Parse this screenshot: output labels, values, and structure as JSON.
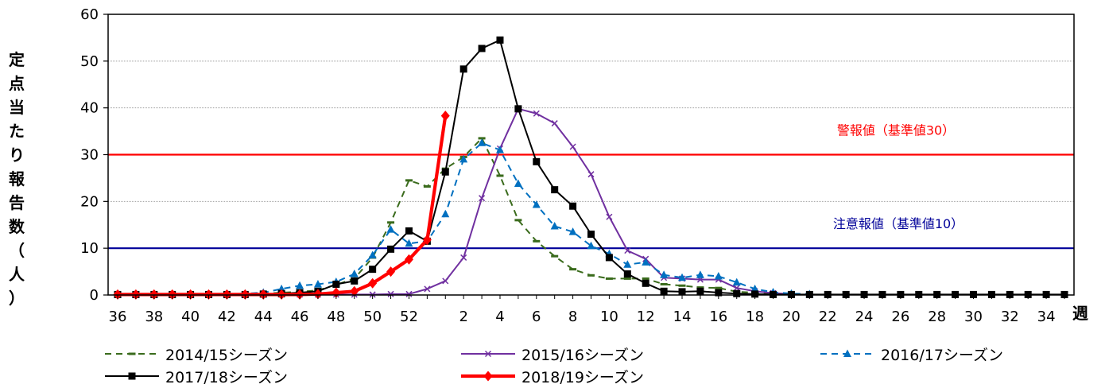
{
  "chart_data": {
    "type": "line",
    "xlabel": "週",
    "ylabel": "定点当たり報告数（人）",
    "ylim": [
      0,
      60
    ],
    "yticks": [
      0,
      10,
      20,
      30,
      40,
      50,
      60
    ],
    "x": [
      "36",
      "37",
      "38",
      "39",
      "40",
      "41",
      "42",
      "43",
      "44",
      "45",
      "46",
      "47",
      "48",
      "49",
      "50",
      "51",
      "52",
      "53",
      "1",
      "2",
      "3",
      "4",
      "5",
      "6",
      "7",
      "8",
      "9",
      "10",
      "11",
      "12",
      "13",
      "14",
      "15",
      "16",
      "17",
      "18",
      "19",
      "20",
      "21",
      "22",
      "23",
      "24",
      "25",
      "26",
      "27",
      "28",
      "29",
      "30",
      "31",
      "32",
      "33",
      "34",
      "35"
    ],
    "xtick_labels": [
      "36",
      "38",
      "40",
      "42",
      "44",
      "46",
      "48",
      "50",
      "52",
      "2",
      "4",
      "6",
      "8",
      "10",
      "12",
      "14",
      "16",
      "18",
      "20",
      "22",
      "24",
      "26",
      "28",
      "30",
      "32",
      "34"
    ],
    "reference_lines": [
      {
        "label": "警報値（基準値30）",
        "value": 30,
        "color": "#ff0000"
      },
      {
        "label": "注意報値（基準値10）",
        "value": 10,
        "color": "#000099"
      }
    ],
    "series": [
      {
        "name": "2014/15シーズン",
        "color": "#3a6b1c",
        "style": "dashed",
        "marker": "dash",
        "values": [
          0.1,
          0.1,
          0.1,
          0.1,
          0.1,
          0.1,
          0.1,
          0.2,
          0.3,
          0.5,
          0.7,
          1.0,
          2.2,
          3.5,
          8.0,
          15.5,
          24.5,
          23.2,
          27.0,
          29.5,
          33.5,
          25.5,
          16.0,
          11.5,
          8.3,
          5.5,
          4.2,
          3.5,
          3.5,
          3.5,
          2.3,
          2.0,
          1.6,
          1.5,
          0.7,
          0.5,
          0.3,
          0.2,
          null,
          null,
          null,
          null,
          null,
          null,
          null,
          null,
          null,
          null,
          null,
          null,
          null,
          null,
          null
        ]
      },
      {
        "name": "2015/16シーズン",
        "color": "#7030a0",
        "style": "solid",
        "marker": "x",
        "values": [
          0.1,
          0.1,
          0.1,
          0.1,
          0.1,
          0.1,
          0.1,
          0.1,
          0.1,
          0.1,
          0.1,
          0.1,
          0.1,
          0.1,
          0.1,
          0.2,
          0.2,
          1.3,
          3.0,
          8.0,
          20.7,
          31.3,
          39.8,
          38.8,
          36.7,
          31.7,
          25.8,
          16.7,
          9.5,
          7.7,
          3.7,
          3.5,
          3.3,
          3.3,
          1.5,
          0.8,
          0.4,
          0.2,
          null,
          null,
          null,
          null,
          null,
          null,
          null,
          null,
          null,
          null,
          null,
          null,
          null,
          null,
          null
        ]
      },
      {
        "name": "2016/17シーズン",
        "color": "#0070c0",
        "style": "dashed",
        "marker": "triangle",
        "values": [
          0.1,
          0.1,
          0.1,
          0.1,
          0.1,
          0.2,
          0.2,
          0.3,
          0.5,
          1.3,
          2.0,
          2.3,
          2.8,
          4.5,
          8.5,
          14.0,
          11.0,
          11.5,
          17.3,
          29.0,
          32.5,
          31.0,
          23.8,
          19.3,
          14.7,
          13.5,
          10.5,
          8.8,
          6.5,
          7.0,
          4.3,
          3.7,
          4.3,
          4.0,
          2.7,
          1.3,
          0.6,
          0.3,
          0.2,
          null,
          null,
          null,
          null,
          null,
          null,
          null,
          null,
          null,
          null,
          null,
          null,
          null,
          null
        ]
      },
      {
        "name": "2017/18シーズン",
        "color": "#000000",
        "style": "solid",
        "marker": "square",
        "values": [
          0.1,
          0.1,
          0.1,
          0.1,
          0.1,
          0.1,
          0.1,
          0.1,
          0.2,
          0.3,
          0.5,
          0.8,
          2.3,
          3.0,
          5.5,
          9.8,
          13.7,
          11.5,
          26.3,
          48.3,
          52.7,
          54.5,
          39.8,
          28.5,
          22.5,
          19.0,
          13.0,
          8.0,
          4.5,
          2.5,
          0.8,
          0.7,
          0.8,
          0.5,
          0.3,
          0.2,
          0.1,
          0.1,
          0.1,
          0.1,
          0.1,
          0.1,
          0.1,
          0.1,
          0.1,
          0.1,
          0.1,
          0.1,
          0.1,
          0.1,
          0.1,
          0.1,
          0.1
        ]
      },
      {
        "name": "2018/19シーズン",
        "color": "#ff0000",
        "style": "bold",
        "marker": "diamond",
        "values": [
          0.1,
          0.1,
          0.1,
          0.1,
          0.1,
          0.1,
          0.1,
          0.1,
          0.1,
          0.1,
          0.1,
          0.2,
          0.5,
          0.8,
          2.5,
          5.0,
          7.6,
          11.8,
          38.3,
          null,
          null,
          null,
          null,
          null,
          null,
          null,
          null,
          null,
          null,
          null,
          null,
          null,
          null,
          null,
          null,
          null,
          null,
          null,
          null,
          null,
          null,
          null,
          null,
          null,
          null,
          null,
          null,
          null,
          null,
          null,
          null,
          null,
          null
        ]
      }
    ]
  }
}
